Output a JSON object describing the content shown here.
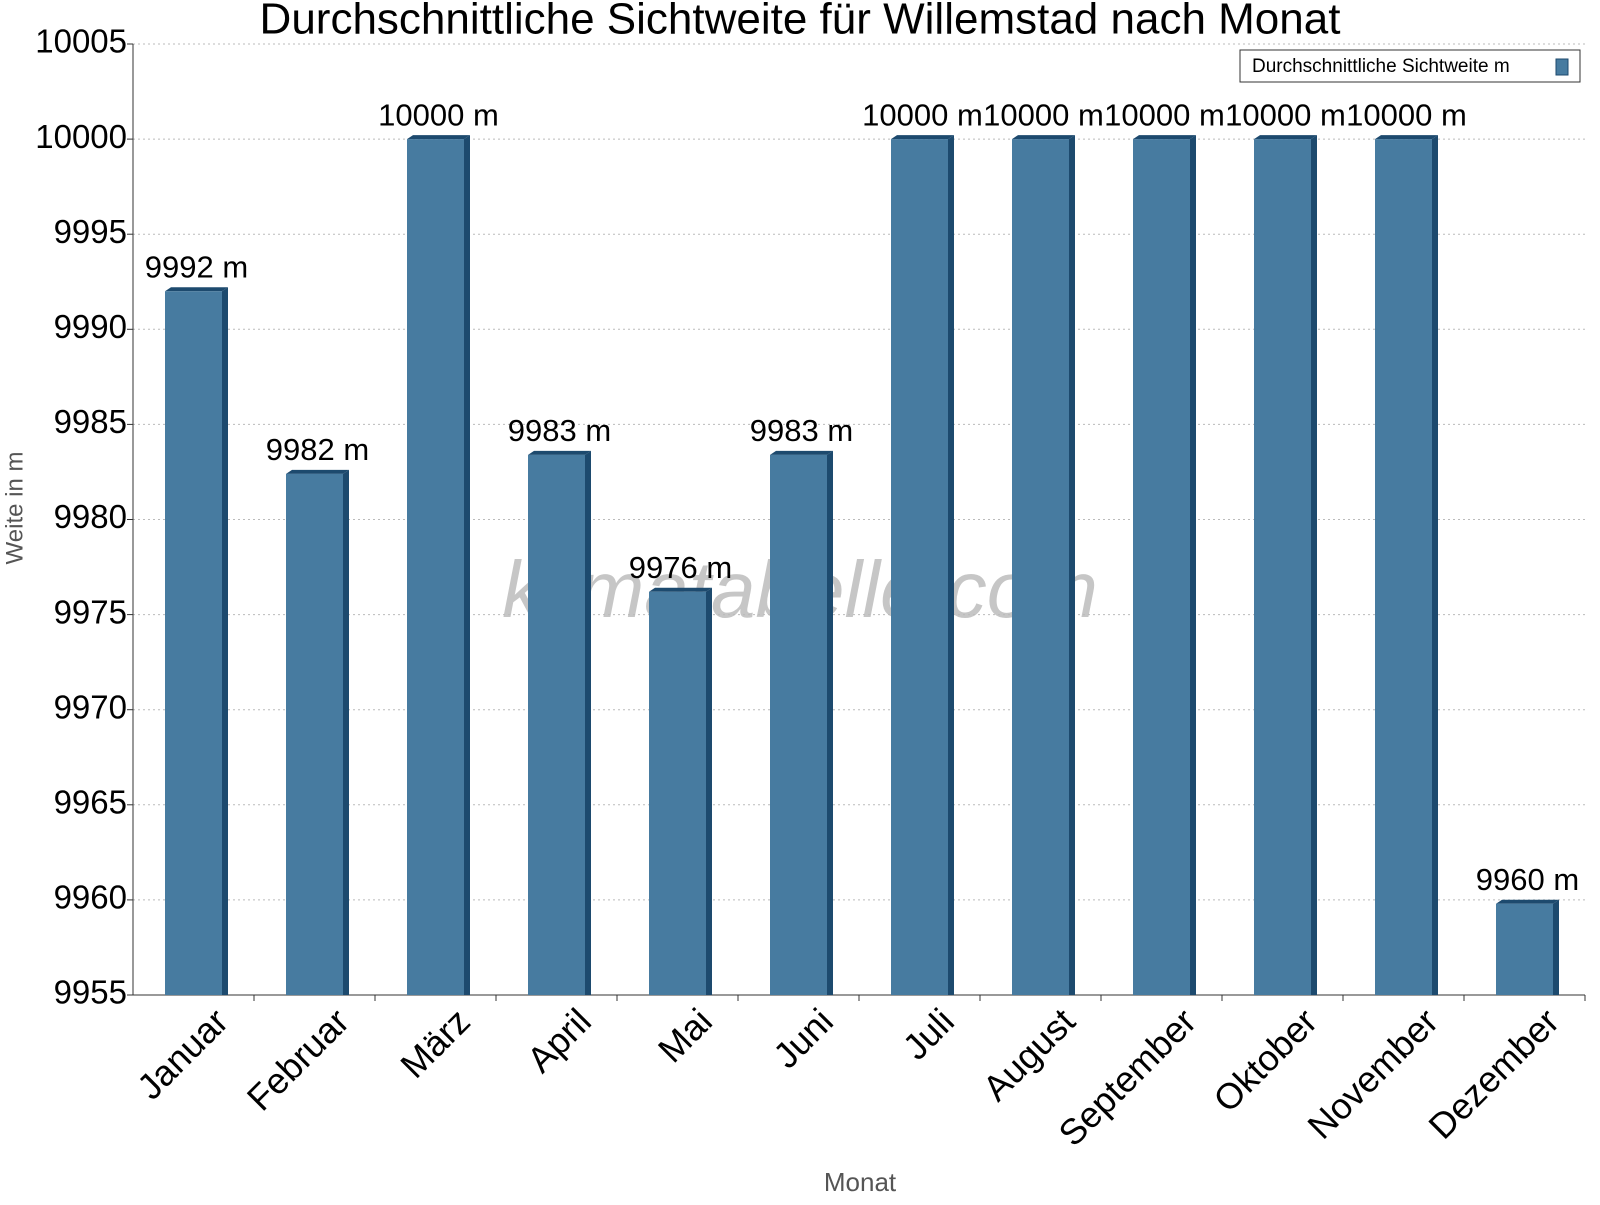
{
  "chart_data": {
    "type": "bar",
    "title": "Durchschnittliche Sichtweite für Willemstad nach Monat",
    "x_label": "Monat",
    "y_label": "Weite in m",
    "watermark": "klimatabelle.com",
    "categories": [
      "Januar",
      "Februar",
      "März",
      "April",
      "Mai",
      "Juni",
      "Juli",
      "August",
      "September",
      "Oktober",
      "November",
      "Dezember"
    ],
    "series": [
      {
        "name": "Durchschnittliche Sichtweite m",
        "color": "#477ba0",
        "values": [
          9992,
          9982.4,
          10000,
          9983.4,
          9976.2,
          9983.4,
          10000,
          10000,
          10000,
          10000,
          10000,
          9959.8
        ],
        "value_labels": [
          "9992 m",
          "9982 m",
          "10000 m",
          "9983 m",
          "9976 m",
          "9983 m",
          "10000 m",
          "10000 m",
          "10000 m",
          "10000 m",
          "10000 m",
          "9960 m"
        ]
      }
    ],
    "ylim": [
      9955,
      10005
    ],
    "yticks": [
      9955,
      9960,
      9965,
      9970,
      9975,
      9980,
      9985,
      9990,
      9995,
      10000,
      10005
    ],
    "grid": true,
    "legend": "top-right"
  }
}
